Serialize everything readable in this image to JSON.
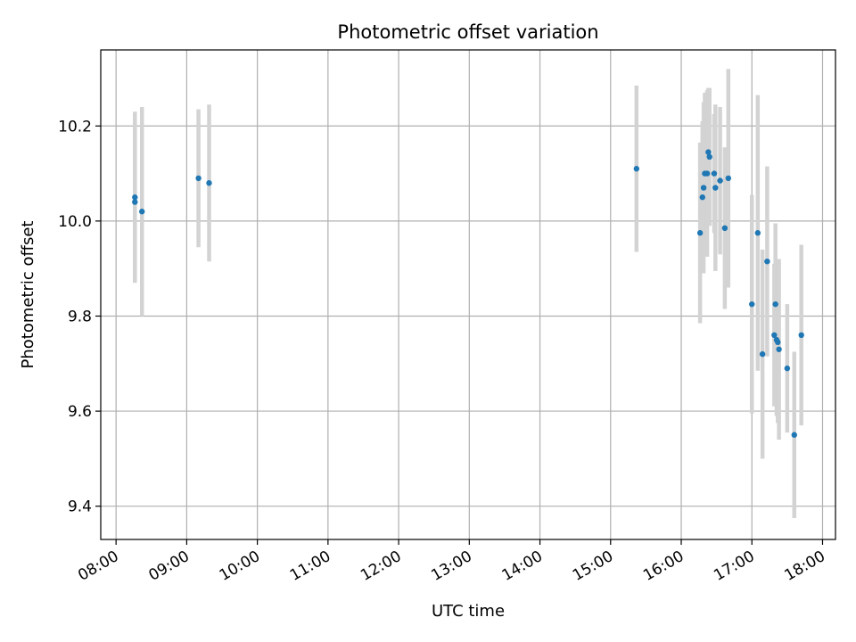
{
  "chart_data": {
    "type": "scatter",
    "title": "Photometric offset variation",
    "xlabel": "UTC time",
    "ylabel": "Photometric offset",
    "x_ticks": [
      "08:00",
      "09:00",
      "10:00",
      "11:00",
      "12:00",
      "13:00",
      "14:00",
      "15:00",
      "16:00",
      "17:00",
      "18:00"
    ],
    "y_ticks": [
      9.4,
      9.6,
      9.8,
      10.0,
      10.2
    ],
    "xlim": [
      "07:47",
      "18:11"
    ],
    "ylim": [
      9.33,
      10.36
    ],
    "grid": true,
    "marker_color": "#1f77b4",
    "errorbar_color": "#d3d3d3",
    "points": [
      {
        "x": "08:16",
        "y": 10.05,
        "err": 0.18
      },
      {
        "x": "08:16",
        "y": 10.04,
        "err": 0.17
      },
      {
        "x": "08:22",
        "y": 10.02,
        "err": 0.22
      },
      {
        "x": "09:10",
        "y": 10.09,
        "err": 0.145
      },
      {
        "x": "09:19",
        "y": 10.08,
        "err": 0.165
      },
      {
        "x": "15:22",
        "y": 10.11,
        "err": 0.175
      },
      {
        "x": "16:16",
        "y": 9.975,
        "err": 0.19
      },
      {
        "x": "16:18",
        "y": 10.05,
        "err": 0.16
      },
      {
        "x": "16:19",
        "y": 10.07,
        "err": 0.18
      },
      {
        "x": "16:20",
        "y": 10.1,
        "err": 0.17
      },
      {
        "x": "16:22",
        "y": 10.1,
        "err": 0.175
      },
      {
        "x": "16:23",
        "y": 10.145,
        "err": 0.135
      },
      {
        "x": "16:24",
        "y": 10.135,
        "err": 0.145
      },
      {
        "x": "16:28",
        "y": 10.1,
        "err": 0.125
      },
      {
        "x": "16:29",
        "y": 10.07,
        "err": 0.175
      },
      {
        "x": "16:33",
        "y": 10.085,
        "err": 0.155
      },
      {
        "x": "16:37",
        "y": 9.985,
        "err": 0.17
      },
      {
        "x": "16:40",
        "y": 10.09,
        "err": 0.23
      },
      {
        "x": "17:00",
        "y": 9.825,
        "err": 0.23
      },
      {
        "x": "17:05",
        "y": 9.975,
        "err": 0.29
      },
      {
        "x": "17:09",
        "y": 9.72,
        "err": 0.22
      },
      {
        "x": "17:13",
        "y": 9.915,
        "err": 0.2
      },
      {
        "x": "17:19",
        "y": 9.76,
        "err": 0.15
      },
      {
        "x": "17:20",
        "y": 9.825,
        "err": 0.17
      },
      {
        "x": "17:21",
        "y": 9.75,
        "err": 0.16
      },
      {
        "x": "17:22",
        "y": 9.745,
        "err": 0.17
      },
      {
        "x": "17:23",
        "y": 9.73,
        "err": 0.19
      },
      {
        "x": "17:30",
        "y": 9.69,
        "err": 0.135
      },
      {
        "x": "17:36",
        "y": 9.55,
        "err": 0.175
      },
      {
        "x": "17:42",
        "y": 9.76,
        "err": 0.19
      }
    ]
  }
}
